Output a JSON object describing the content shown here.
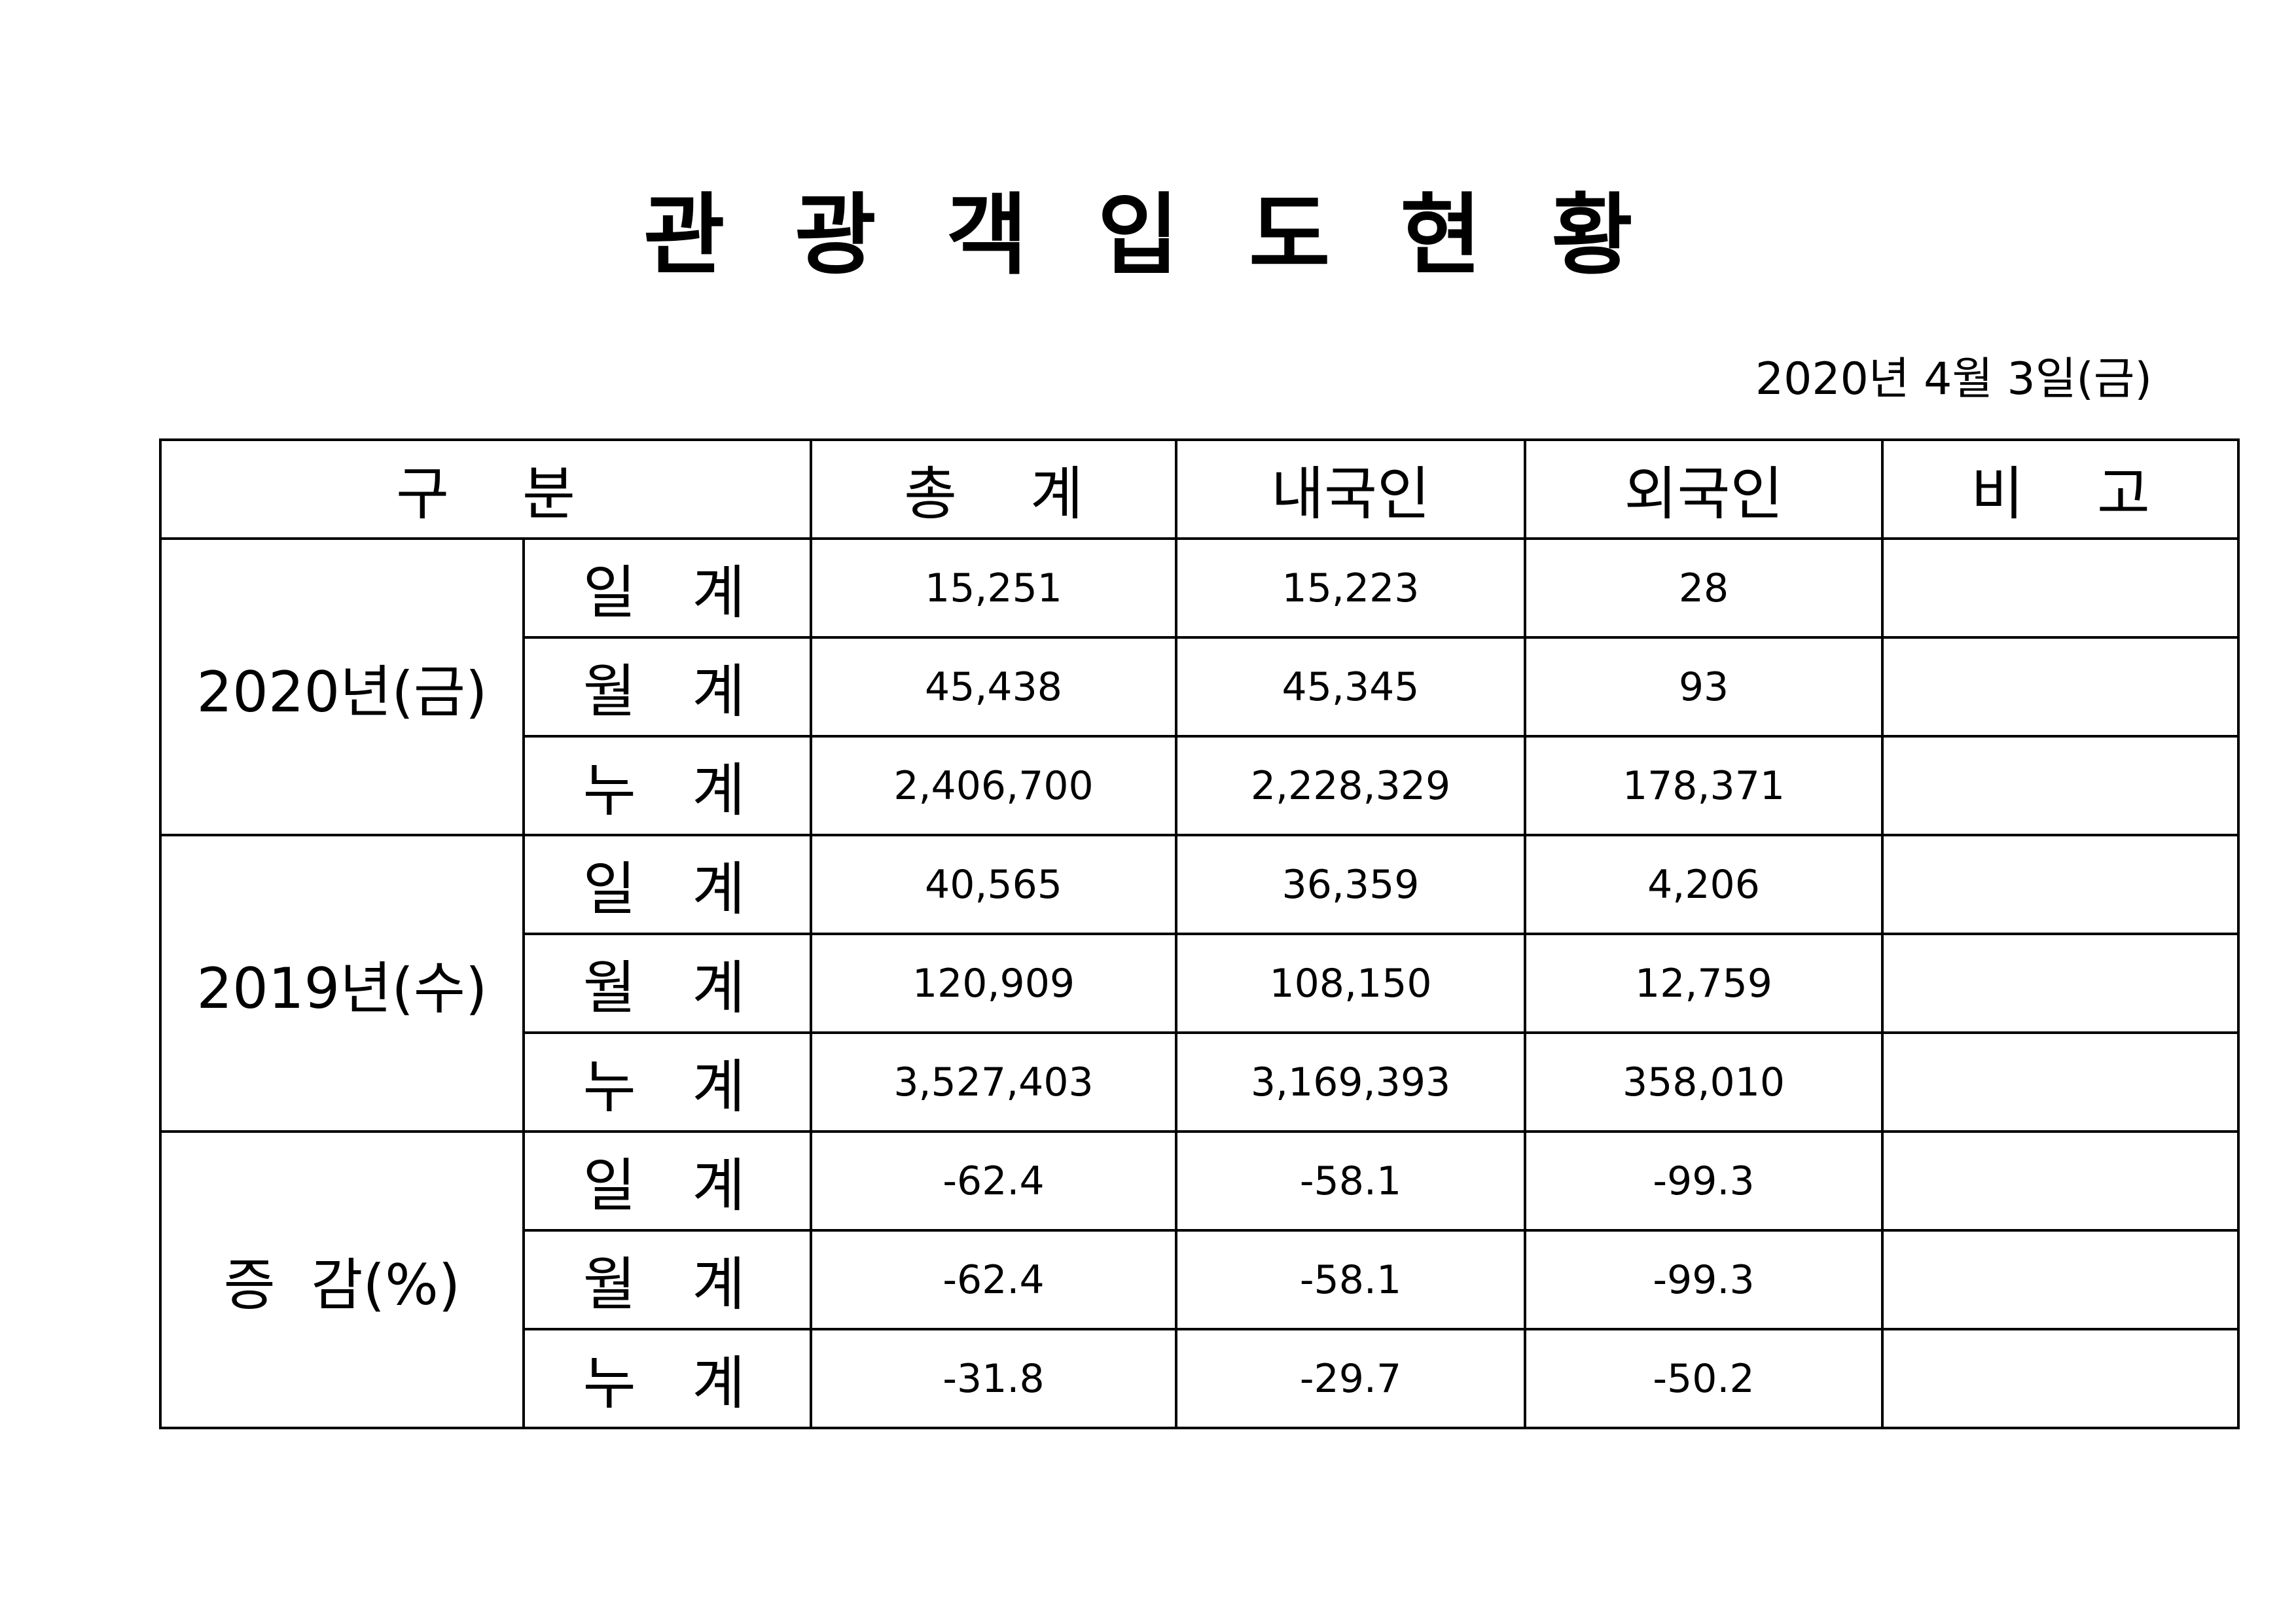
{
  "header": {
    "title": "관 광 객 입 도 현 황",
    "date": "2020년  4월  3일(금)"
  },
  "table": {
    "columns": [
      "구    분",
      "총    계",
      "내국인",
      "외국인",
      "비    고"
    ],
    "groups": [
      {
        "label": "2020년(금)",
        "rows": [
          {
            "label": "일  계",
            "cells": [
              "15,251",
              "15,223",
              "28"
            ]
          },
          {
            "label": "월  계",
            "cells": [
              "45,438",
              "45,345",
              "93"
            ]
          },
          {
            "label": "누  계",
            "cells": [
              "2,406,700",
              "2,228,329",
              "178,371"
            ]
          }
        ]
      },
      {
        "label": "2019년(수)",
        "rows": [
          {
            "label": "일  계",
            "cells": [
              "40,565",
              "36,359",
              "4,206"
            ]
          },
          {
            "label": "월  계",
            "cells": [
              "120,909",
              "108,150",
              "12,759"
            ]
          },
          {
            "label": "누  계",
            "cells": [
              "3,527,403",
              "3,169,393",
              "358,010"
            ]
          }
        ]
      },
      {
        "label": "증  감(%)",
        "rows": [
          {
            "label": "일  계",
            "cells": [
              "-62.4",
              "-58.1",
              "-99.3"
            ]
          },
          {
            "label": "월  계",
            "cells": [
              "-62.4",
              "-58.1",
              "-99.3"
            ]
          },
          {
            "label": "누  계",
            "cells": [
              "-31.8",
              "-29.7",
              "-50.2"
            ]
          }
        ]
      }
    ]
  }
}
